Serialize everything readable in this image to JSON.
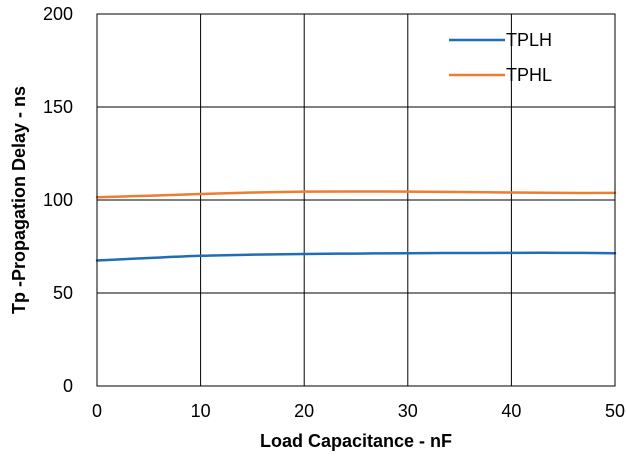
{
  "chart_data": {
    "type": "line",
    "xlabel": "Load Capacitance - nF",
    "ylabel": "Tp -Propagation Delay - ns",
    "xlim": [
      0,
      50
    ],
    "ylim": [
      0,
      200
    ],
    "xticks": [
      "0",
      "10",
      "20",
      "30",
      "40",
      "50"
    ],
    "yticks": [
      "0",
      "50",
      "100",
      "150",
      "200"
    ],
    "grid": true,
    "legend_position": "top-right",
    "series": [
      {
        "name": "TPLH",
        "color": "#1f6db4",
        "x": [
          0,
          5,
          10,
          15,
          20,
          25,
          30,
          35,
          40,
          45,
          50
        ],
        "y": [
          67.5,
          68.8,
          70,
          70.6,
          71,
          71.2,
          71.4,
          71.5,
          71.6,
          71.6,
          71.4
        ]
      },
      {
        "name": "TPHL",
        "color": "#ed7d31",
        "x": [
          0,
          5,
          10,
          15,
          20,
          25,
          30,
          35,
          40,
          45,
          50
        ],
        "y": [
          101.5,
          102.3,
          103.2,
          104,
          104.5,
          104.6,
          104.5,
          104.3,
          104,
          103.8,
          103.8
        ]
      }
    ]
  }
}
